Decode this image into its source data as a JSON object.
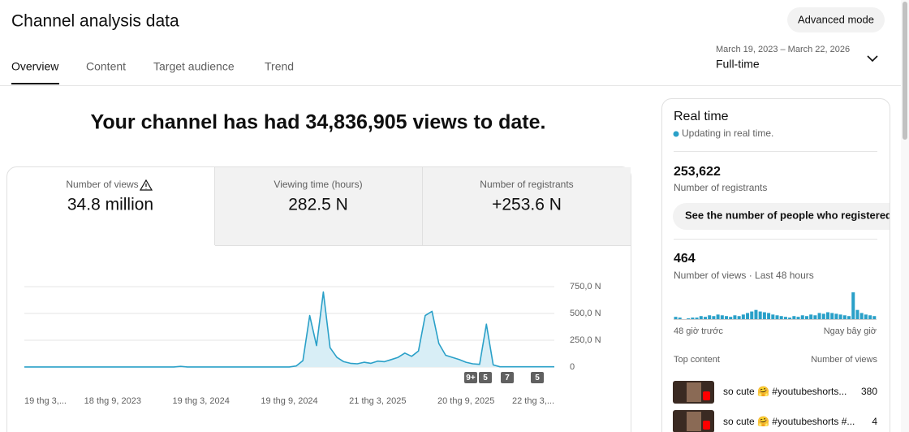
{
  "header": {
    "title": "Channel analysis data",
    "button": "Advanced mode"
  },
  "tabs": [
    "Overview",
    "Content",
    "Target audience",
    "Trend"
  ],
  "date_range": {
    "range": "March 19, 2023 – March 22, 2026",
    "period": "Full-time"
  },
  "headline": "Your channel has had 34,836,905 views to date.",
  "metrics": [
    {
      "label": "Number of views",
      "value": "34.8 million"
    },
    {
      "label": "Viewing time (hours)",
      "value": "282.5 N"
    },
    {
      "label": "Number of registrants",
      "value": "+253.6 N"
    }
  ],
  "chart_data": [
    {
      "type": "line",
      "categories": [
        "19 thg 3,...",
        null,
        null,
        null,
        null,
        null,
        null,
        null,
        null,
        null,
        null,
        null,
        null,
        "18 thg 9, 2023",
        null,
        null,
        null,
        null,
        null,
        null,
        null,
        null,
        null,
        null,
        null,
        null,
        "19 thg 3, 2024",
        null,
        null,
        null,
        null,
        null,
        null,
        null,
        null,
        null,
        null,
        null,
        null,
        "19 thg 9, 2024",
        null,
        null,
        null,
        null,
        null,
        null,
        null,
        null,
        null,
        null,
        null,
        null,
        "21 thg 3, 2025",
        null,
        null,
        null,
        null,
        null,
        null,
        null,
        null,
        null,
        null,
        null,
        null,
        "20 thg 9, 2025",
        null,
        null,
        null,
        null,
        null,
        null,
        null,
        null,
        null,
        null,
        null,
        null,
        "22 thg 3,..."
      ],
      "values": [
        1,
        1,
        1,
        1,
        1,
        1,
        1,
        1,
        1,
        1,
        1,
        1,
        1,
        1,
        1,
        1,
        1,
        1,
        1,
        1,
        1,
        1,
        1,
        6,
        1,
        1,
        1,
        1,
        1,
        1,
        1,
        1,
        1,
        1,
        1,
        1,
        1,
        1,
        1,
        1,
        10,
        60,
        480,
        200,
        700,
        180,
        90,
        50,
        35,
        30,
        45,
        35,
        55,
        50,
        70,
        90,
        130,
        100,
        150,
        480,
        520,
        220,
        110,
        90,
        70,
        45,
        30,
        25,
        400,
        20,
        2,
        2,
        2,
        2,
        2,
        2,
        2,
        2,
        2
      ],
      "color": "#2aa0c8",
      "area_color": "#d8eef6",
      "ylim": [
        0,
        750
      ],
      "yticks": [
        0,
        {
          "value": 250,
          "label": "250,0 N"
        },
        {
          "value": 500,
          "label": "500,0 N"
        },
        {
          "value": 750,
          "label": "750,0 N"
        }
      ],
      "grid": true,
      "annotations": [
        "9+",
        "5",
        "7",
        "5"
      ]
    },
    {
      "type": "bar",
      "values": [
        3,
        2,
        0,
        1,
        2,
        2,
        4,
        3,
        5,
        4,
        6,
        5,
        4,
        3,
        5,
        4,
        6,
        8,
        10,
        12,
        10,
        9,
        8,
        6,
        5,
        4,
        3,
        2,
        4,
        3,
        5,
        4,
        6,
        5,
        8,
        7,
        9,
        8,
        7,
        6,
        5,
        4,
        35,
        12,
        8,
        6,
        5,
        4
      ],
      "color": "#2aa0c8",
      "x_labels": [
        "48 giờ trước",
        "Ngay bây giờ"
      ]
    }
  ],
  "realtime": {
    "title": "Real time",
    "status": "Updating in real time.",
    "subscribers": "253,622",
    "subscribers_label": "Number of registrants",
    "button": "See the number of people who registered in p",
    "views": "464",
    "views_label": "Number of views · Last 48 hours",
    "top_content_label": "Top content",
    "views_column": "Number of views",
    "top_content": [
      {
        "title": "so cute 🤗 #youtubeshorts...",
        "views": "380"
      },
      {
        "title": "so cute 🤗 #youtubeshorts #...",
        "views": "4"
      }
    ]
  }
}
